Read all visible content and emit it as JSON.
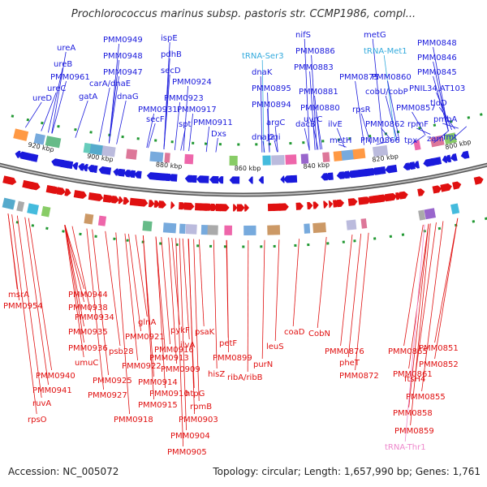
{
  "title": "Prochlorococcus marinus subsp. pastoris str. CCMP1986, compl...",
  "footer": {
    "accession": "Accession: NC_005072",
    "summary": "Topology: circular; Length: 1,657,990 bp; Genes: 1,761"
  },
  "colors": {
    "forward": "#1a1adc",
    "reverse": "#e01010",
    "trna_fwd": "#33aadd",
    "trna_rev": "#ee88cc",
    "backbone": "#999999"
  },
  "ticks": [
    "920 kbp",
    "900 kbp",
    "880 kbp",
    "860 kbp",
    "840 kbp",
    "820 kbp",
    "800 kbp"
  ],
  "top_labels": [
    "ureA",
    "ureB",
    "PMM0961",
    "ureC",
    "ureD",
    "PMM0949",
    "PMM0948",
    "PMM0947",
    "carA/dnaE",
    "gatA",
    "ispE",
    "pdhB",
    "secD",
    "PMM0924",
    "dnaG",
    "PMM0923",
    "PMM0931",
    "secF",
    "PMM0917",
    "spt",
    "PMM0911",
    "Dxs",
    "tRNA-Ser3",
    "dnaK",
    "PMM0895",
    "PMM0894",
    "argC",
    "dnaJ2",
    "pgi",
    "nifS",
    "PMM0886",
    "PMM0883",
    "PMM0881",
    "PMM0880",
    "dacB",
    "uvrC",
    "PMM0875",
    "ilvE",
    "metH",
    "metG",
    "tRNA-Met1",
    "PMM0860",
    "cobU/cobP",
    "rpsR",
    "PMM0862",
    "PMM0866",
    "PMM0857",
    "rpmF",
    "tpx",
    "PMM0848",
    "PMM0846",
    "PMM0845",
    "PNIL34,AT103",
    "tldD",
    "pmbA",
    "zam",
    "fmt"
  ],
  "bottom_labels": [
    "msrA",
    "PMM0954",
    "PMM0944",
    "PMM0938",
    "PMM0934",
    "PMM0935",
    "PMM0936",
    "umuC",
    "PMM0940",
    "PMM0941",
    "ruvA",
    "rpsO",
    "glnA",
    "PMM0921",
    "psb28",
    "PMM0922",
    "PMM0925",
    "PMM0927",
    "PMM0918",
    "pykF",
    "psaK",
    "PMM0916",
    "ilvA",
    "PMM0913",
    "PMM0909",
    "PMM0914",
    "PMM0910",
    "PMM0915",
    "htpG",
    "rpmB",
    "PMM0903",
    "PMM0904",
    "PMM0905",
    "petF",
    "PMM0899",
    "hisZ",
    "ribA/ribB",
    "purN",
    "leuS",
    "coaD",
    "CobN",
    "PMM0876",
    "pheT",
    "PMM0872",
    "PMM0865",
    "PMM0861",
    "PMM0851",
    "PMM0852",
    "ftsH4",
    "PMM0855",
    "PMM0858",
    "PMM0859",
    "tRNA-Thr1"
  ]
}
